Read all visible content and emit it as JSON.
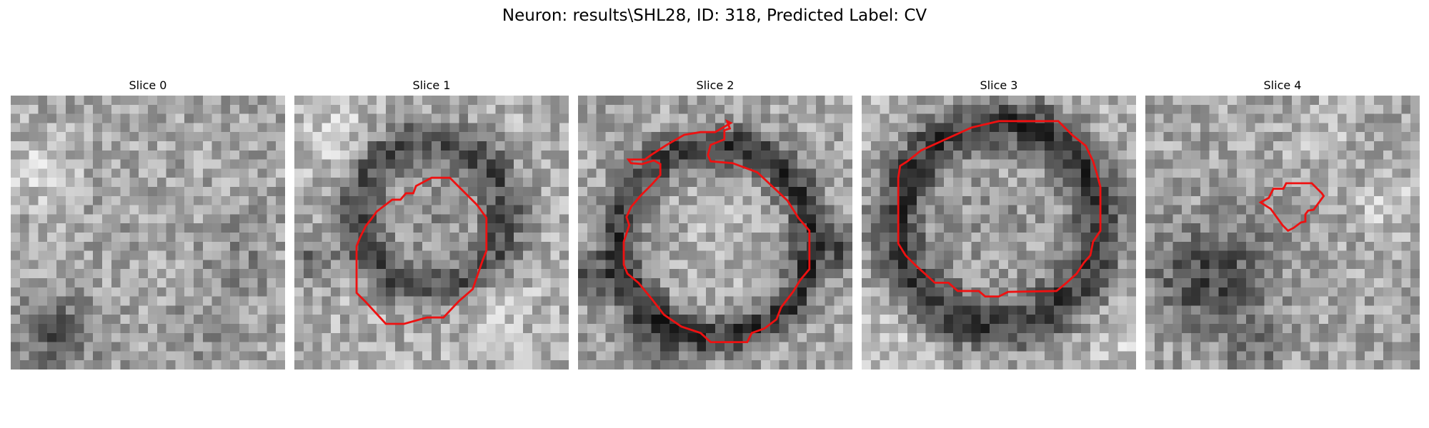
{
  "figure": {
    "title": "Neuron: results\\SHL28, ID: 318, Predicted Label: CV"
  },
  "slices": [
    {
      "title": "Slice 0",
      "has_contour": false
    },
    {
      "title": "Slice 1",
      "has_contour": true
    },
    {
      "title": "Slice 2",
      "has_contour": true
    },
    {
      "title": "Slice 3",
      "has_contour": true
    },
    {
      "title": "Slice 4",
      "has_contour": true
    }
  ],
  "colors": {
    "contour": "#ee1111",
    "background": "#ffffff"
  },
  "image": {
    "colormap": "grayscale"
  }
}
